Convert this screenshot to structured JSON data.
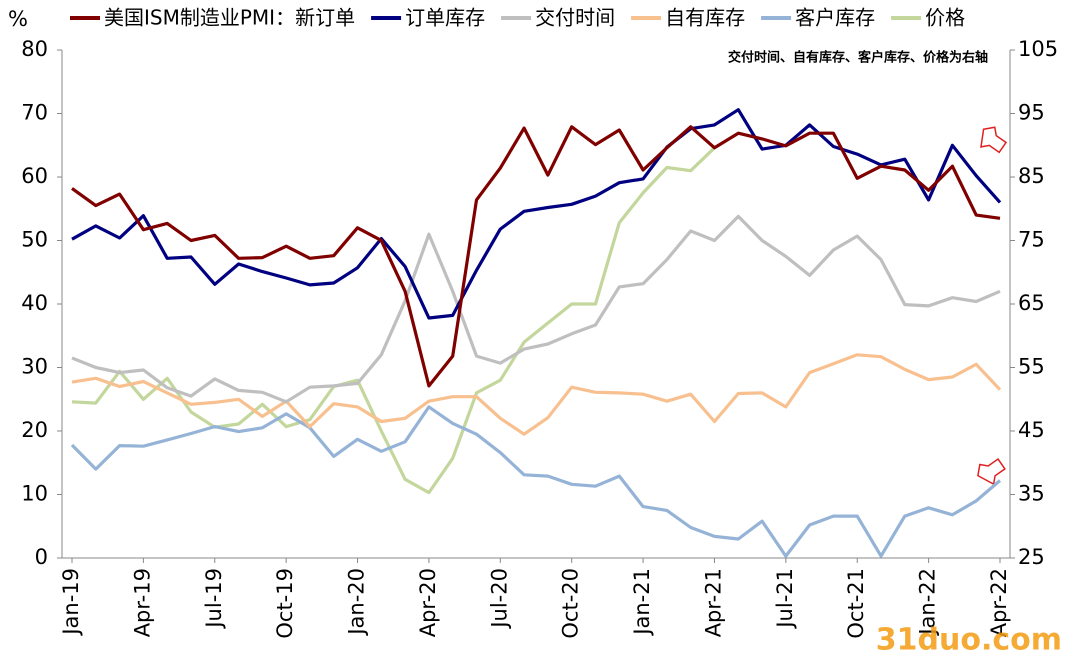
{
  "chart_data": {
    "type": "line",
    "yunit": "%",
    "annotation": "交付时间、自有库存、客户库存、价格为右轴",
    "watermark": "31duo.com",
    "categories": [
      "Jan-19",
      null,
      null,
      "Apr-19",
      null,
      null,
      "Jul-19",
      null,
      null,
      "Oct-19",
      null,
      null,
      "Jan-20",
      null,
      null,
      "Apr-20",
      null,
      null,
      "Jul-20",
      null,
      null,
      "Oct-20",
      null,
      null,
      "Jan-21",
      null,
      null,
      "Apr-21",
      null,
      null,
      "Jul-21",
      null,
      null,
      "Oct-21",
      null,
      null,
      "Jan-22",
      null,
      null,
      "Apr-22"
    ],
    "ylim": [
      0,
      80
    ],
    "yticks": [
      0,
      10,
      20,
      30,
      40,
      50,
      60,
      70,
      80
    ],
    "y2lim": [
      25,
      105
    ],
    "y2ticks": [
      25,
      35,
      45,
      55,
      65,
      75,
      85,
      95,
      105
    ],
    "series": [
      {
        "name": "美国ISM制造业PMI：新订单",
        "color": "#800000",
        "values": [
          58.2,
          55.5,
          57.3,
          51.7,
          52.7,
          50.0,
          50.8,
          47.2,
          47.3,
          49.1,
          47.2,
          47.6,
          52.0,
          50.0,
          42.0,
          27.1,
          31.8,
          56.4,
          61.4,
          67.7,
          60.3,
          67.9,
          65.1,
          67.4,
          61.1,
          64.6,
          67.9,
          64.6,
          66.9,
          66.0,
          64.9,
          66.9,
          66.9,
          59.8,
          61.7,
          61.1,
          57.9,
          61.7,
          54.0,
          53.5
        ]
      },
      {
        "name": "订单库存",
        "color": "#000080",
        "values": [
          50.2,
          52.3,
          50.4,
          53.9,
          47.2,
          47.4,
          43.1,
          46.3,
          45.1,
          44.1,
          43.0,
          43.3,
          45.7,
          50.3,
          45.9,
          37.8,
          38.2,
          45.3,
          51.8,
          54.6,
          55.2,
          55.7,
          57.0,
          59.1,
          59.7,
          64.7,
          67.6,
          68.2,
          70.6,
          64.4,
          65.0,
          68.2,
          64.8,
          63.6,
          61.9,
          62.8,
          56.4,
          65.0,
          60.2,
          56.0
        ]
      },
      {
        "name": "交付时间",
        "color": "#bfbfbf",
        "axis": "y2",
        "values": [
          56.5,
          55.0,
          54.2,
          54.6,
          51.8,
          50.5,
          53.2,
          51.4,
          51.1,
          49.6,
          51.9,
          52.1,
          52.5,
          57.0,
          65.5,
          76.0,
          67.0,
          56.8,
          55.7,
          57.9,
          58.7,
          60.3,
          61.7,
          67.7,
          68.2,
          72.0,
          76.5,
          75.0,
          78.8,
          75.0,
          72.5,
          69.5,
          73.5,
          75.7,
          72.0,
          64.9,
          64.7,
          66.0,
          65.4,
          67.0
        ]
      },
      {
        "name": "自有库存",
        "color": "#f8c08f",
        "axis": "y2",
        "values": [
          52.7,
          53.3,
          52.0,
          52.8,
          51.0,
          49.2,
          49.5,
          50.0,
          47.3,
          49.7,
          45.7,
          49.3,
          48.8,
          46.5,
          47.0,
          49.7,
          50.4,
          50.4,
          47.0,
          44.5,
          47.1,
          51.9,
          51.1,
          51.0,
          50.8,
          49.7,
          50.8,
          46.5,
          50.9,
          51.0,
          48.8,
          54.2,
          55.6,
          57.0,
          56.7,
          54.7,
          53.1,
          53.5,
          55.5,
          51.5
        ]
      },
      {
        "name": "客户库存",
        "color": "#95b3d7",
        "axis": "y2",
        "values": [
          42.8,
          39.0,
          42.7,
          42.6,
          43.6,
          44.6,
          45.7,
          44.9,
          45.5,
          47.7,
          45.5,
          41.0,
          43.7,
          41.8,
          43.3,
          48.8,
          46.2,
          44.5,
          41.6,
          38.1,
          37.9,
          36.6,
          36.3,
          37.9,
          33.1,
          32.5,
          29.8,
          28.4,
          28.0,
          30.8,
          25.3,
          30.2,
          31.6,
          31.6,
          25.3,
          31.6,
          32.9,
          31.8,
          34.0,
          37.2
        ]
      },
      {
        "name": "价格",
        "color": "#c3d69b",
        "axis": "y2",
        "values": [
          49.6,
          49.4,
          54.4,
          50.0,
          53.3,
          48.0,
          45.6,
          46.1,
          49.2,
          45.7,
          46.8,
          52.0,
          53.0,
          45.0,
          37.4,
          35.3,
          40.7,
          51.0,
          53.0,
          59.0,
          62.0,
          65.0,
          65.0,
          77.8,
          82.5,
          86.5,
          86.0,
          89.6,
          null,
          null,
          null,
          null,
          null,
          null,
          null,
          null,
          null,
          null,
          null,
          null
        ]
      }
    ]
  }
}
